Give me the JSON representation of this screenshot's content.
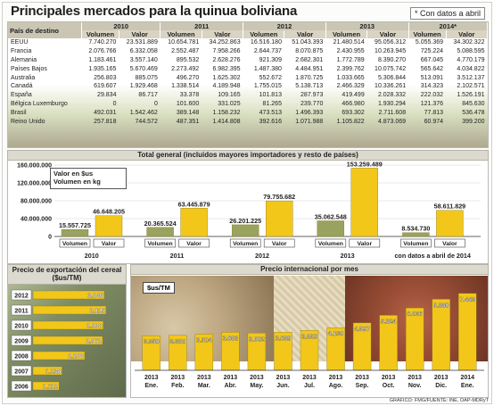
{
  "title": "Principales mercados para la quinua boliviana",
  "note": "* Con datos a abril",
  "table": {
    "header_label": "País de destino",
    "years": [
      "2010",
      "2011",
      "2012",
      "2013",
      "2014*"
    ],
    "sub_headers": [
      "Volumen",
      "Valor"
    ],
    "rows": [
      {
        "country": "EEUU",
        "values": [
          "7.740.270",
          "23.531.889",
          "10.654.781",
          "34.252.863",
          "16.516.180",
          "51.043.393",
          "21.480.514",
          "95.056.312",
          "5.055.369",
          "34.302.322"
        ]
      },
      {
        "country": "Francia",
        "values": [
          "2.076.766",
          "6.332.058",
          "2.552.487",
          "7.958.266",
          "2.644.737",
          "8.070.875",
          "2.430.955",
          "10.263.945",
          "725.224",
          "5.088.595"
        ]
      },
      {
        "country": "Alemania",
        "values": [
          "1.183.461",
          "3.557.140",
          "895.532",
          "2.628.276",
          "921.309",
          "2.682.301",
          "1.772.789",
          "8.390.270",
          "667.045",
          "4.770.179"
        ]
      },
      {
        "country": "Países Bajos",
        "values": [
          "1.935.165",
          "5.670.469",
          "2.273.492",
          "6.982.395",
          "1.487.380",
          "4.484.951",
          "2.399.762",
          "10.075.742",
          "565.642",
          "4.034.822"
        ]
      },
      {
        "country": "Australia",
        "values": [
          "256.803",
          "885.075",
          "496.270",
          "1.625.302",
          "552.672",
          "1.870.725",
          "1.033.665",
          "5.306.844",
          "513.091",
          "3.512.137"
        ]
      },
      {
        "country": "Canadá",
        "values": [
          "619.607",
          "1.929.468",
          "1.338.514",
          "4.189.948",
          "1.755.015",
          "5.138.713",
          "2.466.329",
          "10.336.261",
          "314.323",
          "2.102.571"
        ]
      },
      {
        "country": "España",
        "values": [
          "29.834",
          "86.717",
          "33.378",
          "109.165",
          "101.813",
          "287.973",
          "419.499",
          "2.028.332",
          "222.032",
          "1.526.191"
        ]
      },
      {
        "country": "Bélgica Luxemburgo",
        "values": [
          "0",
          "0",
          "101.600",
          "331.025",
          "81.265",
          "239.770",
          "466.980",
          "1.930.294",
          "121.376",
          "845.630"
        ]
      },
      {
        "country": "Brasil",
        "values": [
          "492.031",
          "1.542.462",
          "389.148",
          "1.158.232",
          "473.513",
          "1.496.393",
          "693.302",
          "2.711.608",
          "77.813",
          "536.478"
        ]
      },
      {
        "country": "Reino Unido",
        "values": [
          "257.818",
          "744.572",
          "487.351",
          "1.414.808",
          "392.616",
          "1.071.988",
          "1.105.822",
          "4.873.069",
          "60.974",
          "399.200"
        ]
      }
    ]
  },
  "total": {
    "title": "Total general (incluidos mayores importadores y resto de países)",
    "legend": [
      "Valor en $us",
      "Volumen en kg"
    ],
    "y_ticks": [
      "160.000.000",
      "120.000.000",
      "80.000.000",
      "40.000.000",
      "0"
    ],
    "period_labels": [
      "2010",
      "2011",
      "2012",
      "2013",
      "con datos a abril de 2014"
    ],
    "cat_labels": [
      "Volumen",
      "Valor"
    ],
    "value_labels": [
      "15.557.725",
      "46.648.205",
      "20.365.524",
      "63.445.879",
      "26.201.225",
      "79.755.682",
      "35.062.548",
      "153.259.489",
      "8.534.730",
      "58.611.829"
    ]
  },
  "export_price": {
    "title": "Precio de exportación del cereal ($us/TM)",
    "years": [
      "2012",
      "2011",
      "2010",
      "2009",
      "2008",
      "2007",
      "2006"
    ],
    "value_labels": [
      "3.046",
      "3.115",
      "2.998",
      "2.972",
      "2.208",
      "1.238",
      "1.112"
    ]
  },
  "intl_price": {
    "title": "Precio internacional por mes",
    "unit": "$us/TM",
    "month_labels": [
      [
        "2013",
        "Ene."
      ],
      [
        "2013",
        "Feb."
      ],
      [
        "2013",
        "Mar."
      ],
      [
        "2013",
        "Abr."
      ],
      [
        "2013",
        "May."
      ],
      [
        "2013",
        "Jun."
      ],
      [
        "2013",
        "Jul."
      ],
      [
        "2013",
        "Ago."
      ],
      [
        "2013",
        "Sep."
      ],
      [
        "2013",
        "Oct."
      ],
      [
        "2013",
        "Nov."
      ],
      [
        "2013",
        "Dic."
      ],
      [
        "2014",
        "Ene."
      ]
    ],
    "value_labels": [
      "3.350",
      "3.380",
      "3.504",
      "3.683",
      "3.602",
      "3.689",
      "3.859",
      "4.130",
      "4.597",
      "5.324",
      "6.036",
      "6.880",
      "7.443"
    ]
  },
  "source": "GRÁFICO: FMG/FUENTE: INE, OAP-MDRyT",
  "colors": {
    "bar": "#f2c71a",
    "bar_dark": "#b9a035",
    "bar_muted": "#9aa25f",
    "header": "#d8d3c3"
  },
  "chart_data": [
    {
      "type": "bar",
      "title": "Total general (incluidos mayores importadores y resto de países)",
      "categories": [
        "2010",
        "2011",
        "2012",
        "2013",
        "con datos a abril de 2014"
      ],
      "series": [
        {
          "name": "Volumen",
          "values": [
            15557725,
            20365524,
            26201225,
            35062548,
            8534730
          ]
        },
        {
          "name": "Valor",
          "values": [
            46648205,
            63445879,
            79755682,
            153259489,
            58611829
          ]
        }
      ],
      "ylim": [
        0,
        160000000
      ],
      "legend": [
        "Valor en $us",
        "Volumen en kg"
      ]
    },
    {
      "type": "bar",
      "title": "Precio de exportación del cereal ($us/TM)",
      "categories": [
        "2012",
        "2011",
        "2010",
        "2009",
        "2008",
        "2007",
        "2006"
      ],
      "values": [
        3046,
        3115,
        2998,
        2972,
        2208,
        1238,
        1112
      ]
    },
    {
      "type": "bar",
      "title": "Precio internacional por mes",
      "ylabel": "$us/TM",
      "categories": [
        "2013 Ene.",
        "2013 Feb.",
        "2013 Mar.",
        "2013 Abr.",
        "2013 May.",
        "2013 Jun.",
        "2013 Jul.",
        "2013 Ago.",
        "2013 Sep.",
        "2013 Oct.",
        "2013 Nov.",
        "2013 Dic.",
        "2014 Ene."
      ],
      "values": [
        3350,
        3380,
        3504,
        3683,
        3602,
        3689,
        3859,
        4130,
        4597,
        5324,
        6036,
        6880,
        7443
      ]
    }
  ]
}
